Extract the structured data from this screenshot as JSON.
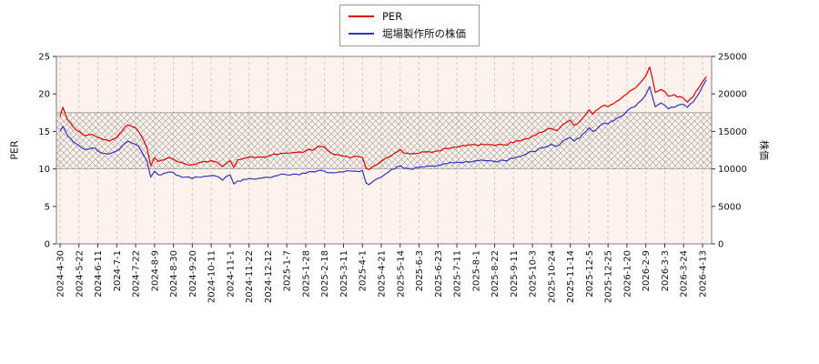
{
  "chart_data": {
    "type": "line",
    "title": "",
    "legend_position": "top-center",
    "grid": "vertical-dashed",
    "x_categories": [
      "2024-4-30",
      "2024-5-22",
      "2024-6-11",
      "2024-7-1",
      "2024-7-22",
      "2024-8-9",
      "2024-8-30",
      "2024-9-20",
      "2024-10-11",
      "2024-11-1",
      "2024-11-22",
      "2024-12-12",
      "2025-1-7",
      "2025-1-28",
      "2025-2-18",
      "2025-3-11",
      "2025-4-1",
      "2025-4-21",
      "2025-5-14",
      "2025-6-3",
      "2025-6-23",
      "2025-7-11",
      "2025-8-1",
      "2025-8-22",
      "2025-9-11",
      "2025-10-3",
      "2025-10-24",
      "2025-11-14",
      "2025-12-5",
      "2025-12-25",
      "2026-1-20",
      "2026-2-9",
      "2026-3-3",
      "2026-3-24",
      "2026-4-13"
    ],
    "ylabel_left": "PER",
    "ylabel_right": "株価",
    "ylim_left": [
      0,
      25
    ],
    "ylim_right": [
      0,
      25000
    ],
    "yticks_left": [
      0,
      5,
      10,
      15,
      20,
      25
    ],
    "yticks_right": [
      0,
      5000,
      10000,
      15000,
      20000,
      25000
    ],
    "hatch_band": {
      "axis": "left",
      "from": 10,
      "to": 17.5,
      "style": "cross-hatch"
    },
    "colors": {
      "plot_bg": "#fdf2ec",
      "grid": "#cccccc",
      "hatch": "#9a9a9a",
      "axis": "#808080",
      "tick_text": "#111111"
    },
    "series": [
      {
        "id": "per",
        "name": "PER",
        "axis": "left",
        "color": "#dd0000",
        "points": [
          [
            0,
            17.0
          ],
          [
            0.15,
            18.2
          ],
          [
            0.4,
            16.5
          ],
          [
            0.7,
            15.6
          ],
          [
            1,
            15.0
          ],
          [
            1.3,
            14.4
          ],
          [
            1.7,
            14.6
          ],
          [
            2,
            14.2
          ],
          [
            2.3,
            13.9
          ],
          [
            2.6,
            13.7
          ],
          [
            3,
            14.2
          ],
          [
            3.3,
            15.1
          ],
          [
            3.6,
            15.9
          ],
          [
            3.85,
            15.6
          ],
          [
            4,
            15.5
          ],
          [
            4.3,
            14.4
          ],
          [
            4.6,
            12.8
          ],
          [
            4.8,
            10.4
          ],
          [
            5,
            11.5
          ],
          [
            5.2,
            11.0
          ],
          [
            5.5,
            11.2
          ],
          [
            5.8,
            11.5
          ],
          [
            6,
            11.3
          ],
          [
            6.3,
            10.9
          ],
          [
            6.6,
            10.7
          ],
          [
            7,
            10.6
          ],
          [
            7.3,
            10.8
          ],
          [
            7.6,
            11.0
          ],
          [
            8,
            11.1
          ],
          [
            8.3,
            10.9
          ],
          [
            8.6,
            10.3
          ],
          [
            9,
            11.1
          ],
          [
            9.2,
            10.2
          ],
          [
            9.4,
            11.2
          ],
          [
            9.7,
            11.4
          ],
          [
            10,
            11.6
          ],
          [
            10.3,
            11.5
          ],
          [
            10.7,
            11.6
          ],
          [
            11,
            11.7
          ],
          [
            11.5,
            11.9
          ],
          [
            12,
            12.1
          ],
          [
            12.5,
            12.2
          ],
          [
            13,
            12.4
          ],
          [
            13.5,
            12.7
          ],
          [
            13.8,
            13.0
          ],
          [
            14,
            12.9
          ],
          [
            14.3,
            12.2
          ],
          [
            14.6,
            11.9
          ],
          [
            15,
            11.7
          ],
          [
            15.5,
            11.6
          ],
          [
            16,
            11.5
          ],
          [
            16.2,
            10.1
          ],
          [
            16.35,
            9.9
          ],
          [
            16.6,
            10.4
          ],
          [
            17,
            11.0
          ],
          [
            17.4,
            11.6
          ],
          [
            17.7,
            12.1
          ],
          [
            18,
            12.6
          ],
          [
            18.2,
            12.1
          ],
          [
            18.5,
            12.0
          ],
          [
            19,
            12.1
          ],
          [
            19.5,
            12.3
          ],
          [
            20,
            12.4
          ],
          [
            20.5,
            12.7
          ],
          [
            21,
            12.9
          ],
          [
            21.5,
            13.1
          ],
          [
            22,
            13.2
          ],
          [
            22.3,
            13.3
          ],
          [
            22.6,
            13.2
          ],
          [
            23,
            13.1
          ],
          [
            23.5,
            13.2
          ],
          [
            24,
            13.5
          ],
          [
            24.5,
            13.9
          ],
          [
            25,
            14.4
          ],
          [
            25.5,
            14.9
          ],
          [
            26,
            15.4
          ],
          [
            26.3,
            15.1
          ],
          [
            26.6,
            15.9
          ],
          [
            27,
            16.5
          ],
          [
            27.2,
            15.8
          ],
          [
            27.5,
            16.3
          ],
          [
            27.8,
            17.2
          ],
          [
            28,
            17.9
          ],
          [
            28.2,
            17.3
          ],
          [
            28.5,
            18.0
          ],
          [
            28.8,
            18.5
          ],
          [
            29,
            18.3
          ],
          [
            29.3,
            18.7
          ],
          [
            29.6,
            19.2
          ],
          [
            30,
            20.0
          ],
          [
            30.3,
            20.6
          ],
          [
            30.6,
            21.2
          ],
          [
            31,
            22.4
          ],
          [
            31.2,
            23.6
          ],
          [
            31.35,
            22.0
          ],
          [
            31.5,
            20.2
          ],
          [
            31.8,
            20.6
          ],
          [
            32,
            20.3
          ],
          [
            32.2,
            19.7
          ],
          [
            32.5,
            19.9
          ],
          [
            33,
            19.4
          ],
          [
            33.2,
            18.9
          ],
          [
            33.5,
            19.6
          ],
          [
            33.8,
            20.8
          ],
          [
            34,
            21.6
          ],
          [
            34.2,
            22.3
          ]
        ]
      },
      {
        "id": "stock-price",
        "name": "堀場製作所の株価",
        "axis": "right",
        "color": "#3333bb",
        "points": [
          [
            0,
            15000
          ],
          [
            0.15,
            15700
          ],
          [
            0.4,
            14400
          ],
          [
            0.7,
            13600
          ],
          [
            1,
            13100
          ],
          [
            1.3,
            12600
          ],
          [
            1.7,
            12800
          ],
          [
            2,
            12400
          ],
          [
            2.3,
            12100
          ],
          [
            2.6,
            12000
          ],
          [
            3,
            12400
          ],
          [
            3.3,
            13100
          ],
          [
            3.6,
            13700
          ],
          [
            3.85,
            13400
          ],
          [
            4,
            13300
          ],
          [
            4.3,
            12400
          ],
          [
            4.6,
            11000
          ],
          [
            4.8,
            8900
          ],
          [
            5,
            9700
          ],
          [
            5.2,
            9200
          ],
          [
            5.5,
            9400
          ],
          [
            5.8,
            9600
          ],
          [
            6,
            9500
          ],
          [
            6.3,
            9100
          ],
          [
            6.6,
            8900
          ],
          [
            7,
            8700
          ],
          [
            7.3,
            8900
          ],
          [
            7.6,
            9000
          ],
          [
            8,
            9100
          ],
          [
            8.3,
            9000
          ],
          [
            8.6,
            8500
          ],
          [
            9,
            9200
          ],
          [
            9.2,
            8000
          ],
          [
            9.4,
            8400
          ],
          [
            9.7,
            8600
          ],
          [
            10,
            8700
          ],
          [
            10.3,
            8600
          ],
          [
            10.7,
            8800
          ],
          [
            11,
            8900
          ],
          [
            11.5,
            9100
          ],
          [
            12,
            9200
          ],
          [
            12.5,
            9300
          ],
          [
            13,
            9400
          ],
          [
            13.5,
            9600
          ],
          [
            13.8,
            9800
          ],
          [
            14,
            9700
          ],
          [
            14.3,
            9500
          ],
          [
            14.6,
            9500
          ],
          [
            15,
            9600
          ],
          [
            15.5,
            9700
          ],
          [
            16,
            9800
          ],
          [
            16.2,
            8100
          ],
          [
            16.35,
            7900
          ],
          [
            16.6,
            8400
          ],
          [
            17,
            8900
          ],
          [
            17.4,
            9600
          ],
          [
            17.7,
            10000
          ],
          [
            18,
            10400
          ],
          [
            18.2,
            10100
          ],
          [
            18.5,
            10000
          ],
          [
            19,
            10200
          ],
          [
            19.5,
            10400
          ],
          [
            20,
            10500
          ],
          [
            20.5,
            10700
          ],
          [
            21,
            10900
          ],
          [
            21.5,
            11000
          ],
          [
            22,
            11100
          ],
          [
            22.3,
            11200
          ],
          [
            22.6,
            11100
          ],
          [
            23,
            11000
          ],
          [
            23.5,
            11100
          ],
          [
            24,
            11400
          ],
          [
            24.5,
            11800
          ],
          [
            25,
            12300
          ],
          [
            25.5,
            12800
          ],
          [
            26,
            13300
          ],
          [
            26.3,
            13000
          ],
          [
            26.6,
            13700
          ],
          [
            27,
            14200
          ],
          [
            27.2,
            13700
          ],
          [
            27.5,
            14100
          ],
          [
            27.8,
            14900
          ],
          [
            28,
            15500
          ],
          [
            28.2,
            15000
          ],
          [
            28.5,
            15600
          ],
          [
            28.8,
            16100
          ],
          [
            29,
            16000
          ],
          [
            29.3,
            16400
          ],
          [
            29.6,
            16900
          ],
          [
            30,
            17700
          ],
          [
            30.3,
            18200
          ],
          [
            30.6,
            18800
          ],
          [
            31,
            19900
          ],
          [
            31.2,
            21000
          ],
          [
            31.35,
            19600
          ],
          [
            31.5,
            18300
          ],
          [
            31.8,
            18800
          ],
          [
            32,
            18500
          ],
          [
            32.2,
            18000
          ],
          [
            32.5,
            18200
          ],
          [
            33,
            18600
          ],
          [
            33.2,
            18200
          ],
          [
            33.5,
            18900
          ],
          [
            33.8,
            20000
          ],
          [
            34,
            21000
          ],
          [
            34.2,
            21900
          ]
        ]
      }
    ]
  }
}
